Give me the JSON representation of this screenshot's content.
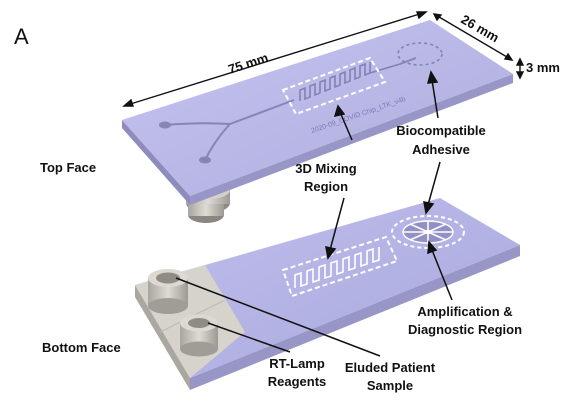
{
  "panel_label": "A",
  "dimensions": {
    "length": "75 mm",
    "width": "26 mm",
    "thickness": "3 mm"
  },
  "chip_engraving": "2020-09_COVID Chip_LTK_v4b",
  "labels": {
    "top_face": "Top Face",
    "bottom_face": "Bottom Face",
    "mixing_line1": "3D Mixing",
    "mixing_line2": "Region",
    "adhesive_line1": "Biocompatible",
    "adhesive_line2": "Adhesive",
    "amplification_line1": "Amplification &",
    "amplification_line2": "Diagnostic Region",
    "reagents_line1": "RT-Lamp",
    "reagents_line2": "Reagents",
    "sample_line1": "Eluded Patient",
    "sample_line2": "Sample"
  },
  "colors": {
    "chip_top": "#b9b8ea",
    "chip_side": "#9a99c9",
    "port_gray": "#c9c6c0"
  }
}
